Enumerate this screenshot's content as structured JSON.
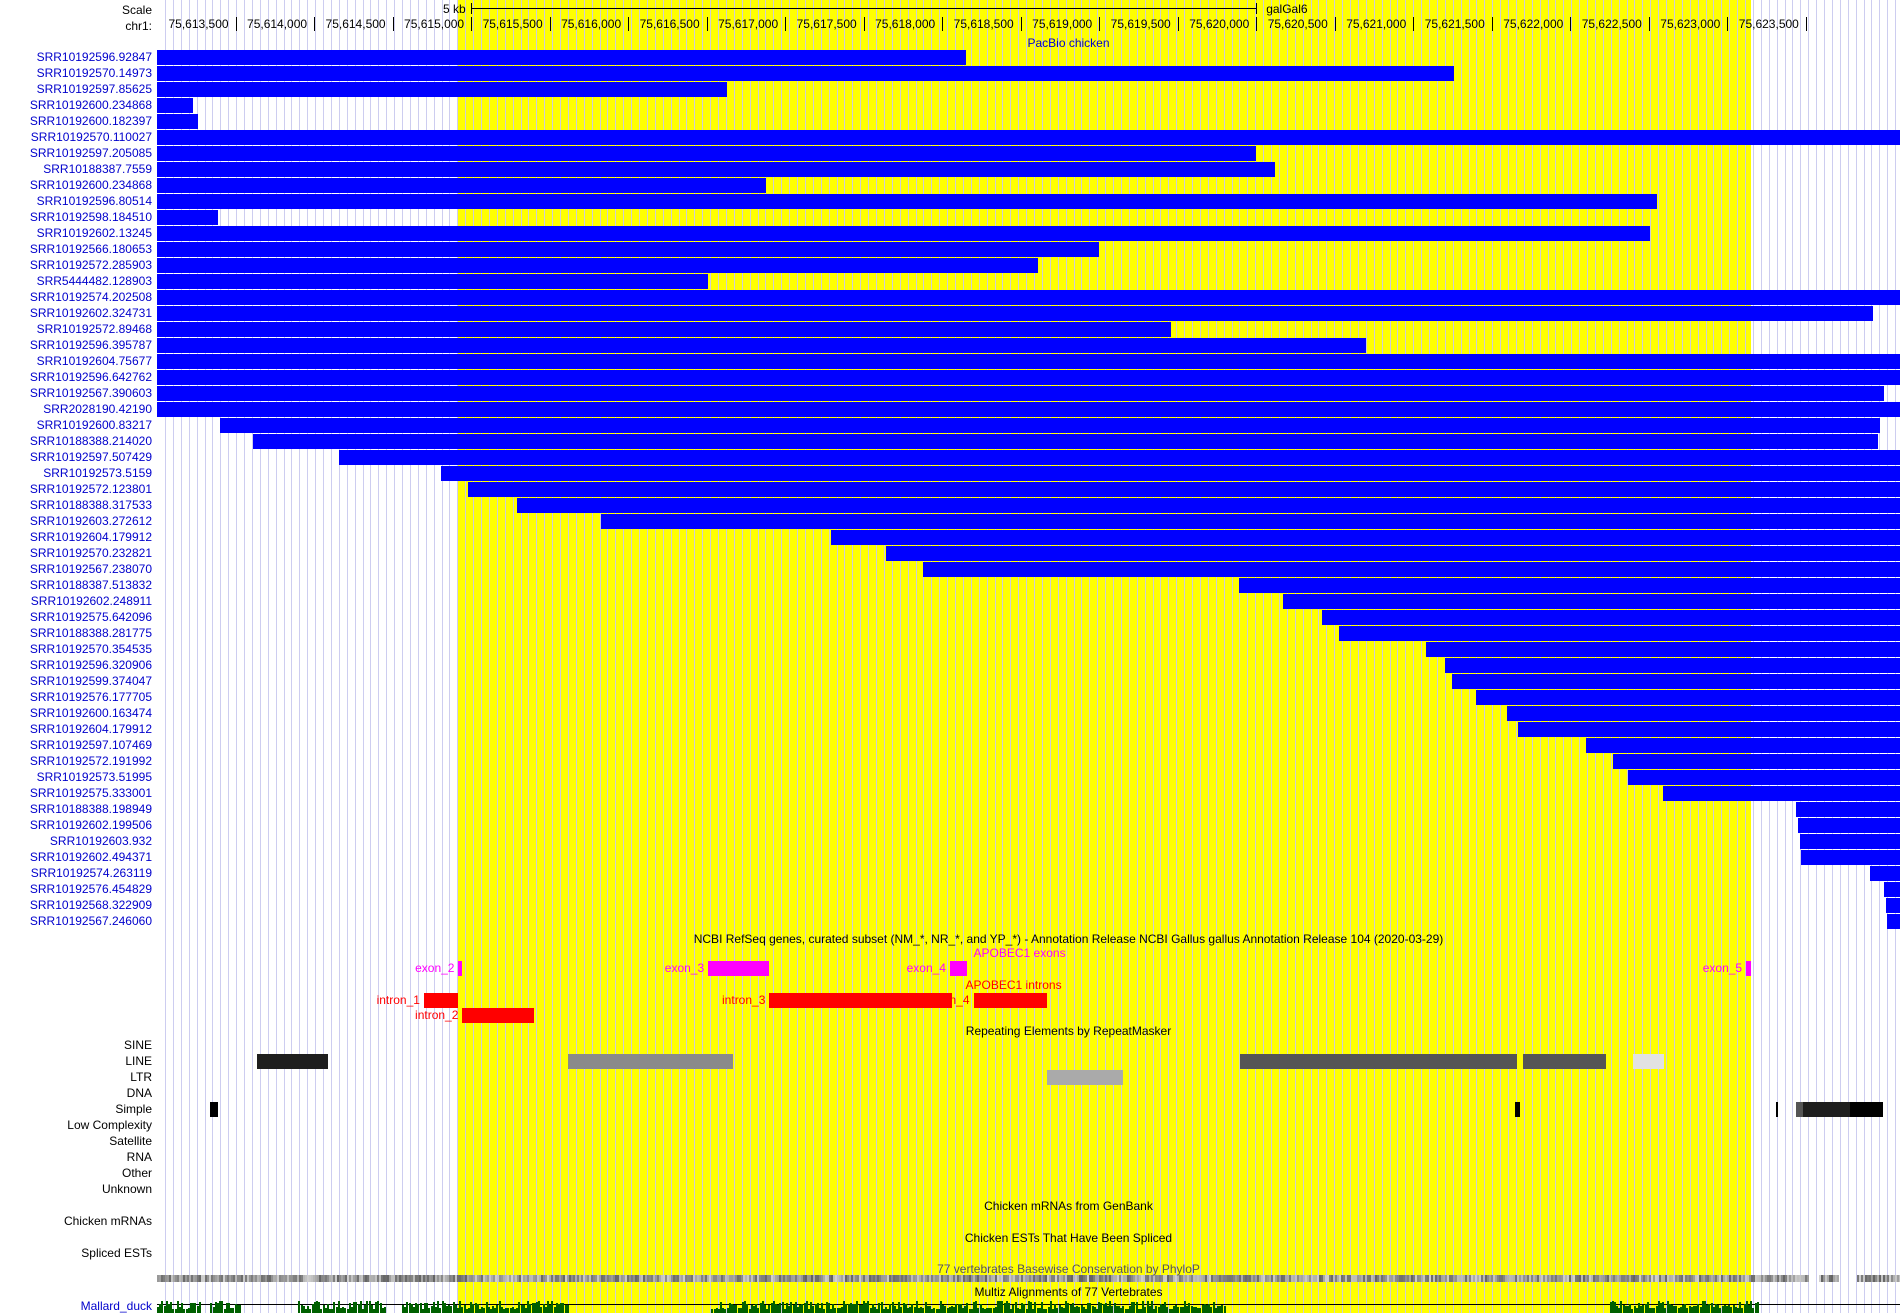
{
  "scale": {
    "label": "Scale",
    "chrom_label": "chr1:",
    "bar_label": "5 kb",
    "assembly": "galGal6",
    "ticks": [
      "75,613,500",
      "75,614,000",
      "75,614,500",
      "75,615,000",
      "75,615,500",
      "75,616,000",
      "75,616,500",
      "75,617,000",
      "75,617,500",
      "75,618,000",
      "75,618,500",
      "75,619,000",
      "75,619,500",
      "75,620,000",
      "75,620,500",
      "75,621,000",
      "75,621,500",
      "75,622,000",
      "75,622,500",
      "75,623,000",
      "75,623,500"
    ],
    "start_bp": 75613000,
    "end_bp": 75624100,
    "highlight": [
      75614920,
      75623150
    ],
    "scalebar": [
      75615000,
      75620000
    ]
  },
  "colors": {
    "read": "#0000ff",
    "highlight": "#ffff00",
    "exon": "#ff00ff",
    "intron": "#ff0000",
    "label_blue": "#0000cc",
    "conservation": "#006000"
  },
  "pacbio": {
    "title": "PacBio chicken",
    "reads": [
      {
        "name": "SRR10192596.92847",
        "start": 75613000,
        "end": 75618150
      },
      {
        "name": "SRR10192570.14973",
        "start": 75613000,
        "end": 75621260
      },
      {
        "name": "SRR10192597.85625",
        "start": 75613000,
        "end": 75616630
      },
      {
        "name": "SRR10192600.234868",
        "start": 75613000,
        "end": 75613230
      },
      {
        "name": "SRR10192600.182397",
        "start": 75613000,
        "end": 75613260
      },
      {
        "name": "SRR10192570.110027",
        "start": 75613000,
        "end": 75624100
      },
      {
        "name": "SRR10192597.205085",
        "start": 75613000,
        "end": 75620000
      },
      {
        "name": "SRR10188387.7559",
        "start": 75613000,
        "end": 75620120
      },
      {
        "name": "SRR10192600.234868",
        "start": 75613000,
        "end": 75616880
      },
      {
        "name": "SRR10192596.80514",
        "start": 75613000,
        "end": 75622550
      },
      {
        "name": "SRR10192598.184510",
        "start": 75613000,
        "end": 75613390
      },
      {
        "name": "SRR10192602.13245",
        "start": 75613000,
        "end": 75622510
      },
      {
        "name": "SRR10192566.180653",
        "start": 75613000,
        "end": 75619000
      },
      {
        "name": "SRR10192572.285903",
        "start": 75613000,
        "end": 75618610
      },
      {
        "name": "SRR5444482.128903",
        "start": 75613000,
        "end": 75616510
      },
      {
        "name": "SRR10192574.202508",
        "start": 75613000,
        "end": 75624100
      },
      {
        "name": "SRR10192602.324731",
        "start": 75613000,
        "end": 75623930
      },
      {
        "name": "SRR10192572.89468",
        "start": 75613000,
        "end": 75619460
      },
      {
        "name": "SRR10192596.395787",
        "start": 75613000,
        "end": 75620700
      },
      {
        "name": "SRR10192604.75677",
        "start": 75613000,
        "end": 75624100
      },
      {
        "name": "SRR10192596.642762",
        "start": 75613000,
        "end": 75624100
      },
      {
        "name": "SRR10192567.390603",
        "start": 75613000,
        "end": 75624000
      },
      {
        "name": "SRR2028190.42190",
        "start": 75613000,
        "end": 75624100
      },
      {
        "name": "SRR10192600.83217",
        "start": 75613400,
        "end": 75623970
      },
      {
        "name": "SRR10188388.214020",
        "start": 75613610,
        "end": 75623960
      },
      {
        "name": "SRR10192597.507429",
        "start": 75614160,
        "end": 75624100
      },
      {
        "name": "SRR10192573.5159",
        "start": 75614810,
        "end": 75624100
      },
      {
        "name": "SRR10192572.123801",
        "start": 75614980,
        "end": 75624100
      },
      {
        "name": "SRR10188388.317533",
        "start": 75615290,
        "end": 75624100
      },
      {
        "name": "SRR10192603.272612",
        "start": 75615830,
        "end": 75624100
      },
      {
        "name": "SRR10192604.179912",
        "start": 75617290,
        "end": 75624100
      },
      {
        "name": "SRR10192570.232821",
        "start": 75617640,
        "end": 75624100
      },
      {
        "name": "SRR10192567.238070",
        "start": 75617880,
        "end": 75624100
      },
      {
        "name": "SRR10188387.513832",
        "start": 75619890,
        "end": 75624100
      },
      {
        "name": "SRR10192602.248911",
        "start": 75620170,
        "end": 75624100
      },
      {
        "name": "SRR10192575.642096",
        "start": 75620420,
        "end": 75624100
      },
      {
        "name": "SRR10188388.281775",
        "start": 75620530,
        "end": 75624100
      },
      {
        "name": "SRR10192570.354535",
        "start": 75621080,
        "end": 75624100
      },
      {
        "name": "SRR10192596.320906",
        "start": 75621200,
        "end": 75624100
      },
      {
        "name": "SRR10192599.374047",
        "start": 75621250,
        "end": 75624100
      },
      {
        "name": "SRR10192576.177705",
        "start": 75621400,
        "end": 75624100
      },
      {
        "name": "SRR10192600.163474",
        "start": 75621600,
        "end": 75624100
      },
      {
        "name": "SRR10192604.179912",
        "start": 75621670,
        "end": 75624100
      },
      {
        "name": "SRR10192597.107469",
        "start": 75622100,
        "end": 75624100
      },
      {
        "name": "SRR10192572.191992",
        "start": 75622270,
        "end": 75624100
      },
      {
        "name": "SRR10192573.51995",
        "start": 75622370,
        "end": 75624100
      },
      {
        "name": "SRR10192575.333001",
        "start": 75622590,
        "end": 75624100
      },
      {
        "name": "SRR10188388.198949",
        "start": 75623440,
        "end": 75624100
      },
      {
        "name": "SRR10192602.199506",
        "start": 75623450,
        "end": 75624100
      },
      {
        "name": "SRR10192603.932",
        "start": 75623460,
        "end": 75624100
      },
      {
        "name": "SRR10192602.494371",
        "start": 75623470,
        "end": 75624100
      },
      {
        "name": "SRR10192574.263119",
        "start": 75623910,
        "end": 75624100
      },
      {
        "name": "SRR10192576.454829",
        "start": 75624000,
        "end": 75624100
      },
      {
        "name": "SRR10192568.322909",
        "start": 75624010,
        "end": 75624100
      },
      {
        "name": "SRR10192567.246060",
        "start": 75624020,
        "end": 75624100
      }
    ]
  },
  "refseq": {
    "title": "NCBI RefSeq genes, curated subset (NM_*, NR_*, and YP_*) - Annotation Release NCBI Gallus gallus Annotation Release 104 (2020-03-29)",
    "exons_title": "APOBEC1 exons",
    "introns_title": "APOBEC1 introns",
    "exons": [
      {
        "name": "exon_2",
        "start": 75614920,
        "end": 75614945
      },
      {
        "name": "exon_3",
        "start": 75616510,
        "end": 75616900
      },
      {
        "name": "exon_4",
        "start": 75618050,
        "end": 75618160
      },
      {
        "name": "exon_5",
        "start": 75623120,
        "end": 75623150
      }
    ],
    "introns": [
      {
        "name": "intron_1",
        "start": 75614700,
        "end": 75614920
      },
      {
        "name": "intron_2",
        "start": 75614945,
        "end": 75615400
      },
      {
        "name": "intron_3",
        "start": 75616900,
        "end": 75618060
      },
      {
        "name": "intron_4",
        "start": 75618200,
        "end": 75618670
      }
    ]
  },
  "rmsk": {
    "title": "Repeating Elements by RepeatMasker",
    "classes": [
      "SINE",
      "LINE",
      "LTR",
      "DNA",
      "Simple",
      "Low Complexity",
      "Satellite",
      "RNA",
      "Other",
      "Unknown"
    ],
    "elements": [
      {
        "cls": "LINE",
        "start": 75613640,
        "end": 75614090,
        "shade": "#1e1e1e"
      },
      {
        "cls": "LINE",
        "start": 75615620,
        "end": 75616670,
        "shade": "#8a8a8a"
      },
      {
        "cls": "LINE",
        "start": 75619900,
        "end": 75621660,
        "shade": "#555555"
      },
      {
        "cls": "LINE",
        "start": 75621700,
        "end": 75622230,
        "shade": "#555555"
      },
      {
        "cls": "LINE",
        "start": 75622400,
        "end": 75622600,
        "shade": "#e2e2e2"
      },
      {
        "cls": "LTR",
        "start": 75618670,
        "end": 75619150,
        "shade": "#aaaaaa"
      },
      {
        "cls": "Simple",
        "start": 75613340,
        "end": 75613390,
        "shade": "#000000"
      },
      {
        "cls": "Simple",
        "start": 75621650,
        "end": 75621680,
        "shade": "#000000"
      },
      {
        "cls": "Simple",
        "start": 75623310,
        "end": 75623325,
        "shade": "#000000"
      },
      {
        "cls": "Simple",
        "start": 75623440,
        "end": 75623480,
        "shade": "#555555"
      },
      {
        "cls": "Simple",
        "start": 75623480,
        "end": 75623780,
        "shade": "#1e1e1e"
      },
      {
        "cls": "Simple",
        "start": 75623780,
        "end": 75623990,
        "shade": "#000000"
      }
    ]
  },
  "mrna": {
    "label": "Chicken mRNAs",
    "title": "Chicken mRNAs from GenBank"
  },
  "est": {
    "label": "Spliced ESTs",
    "title": "Chicken ESTs That Have Been Spliced"
  },
  "phylop": {
    "title": "77 vertebrates Basewise Conservation by PhyloP"
  },
  "multiz": {
    "title": "Multiz Alignments of 77 Vertebrates",
    "species": "Mallard_duck"
  }
}
